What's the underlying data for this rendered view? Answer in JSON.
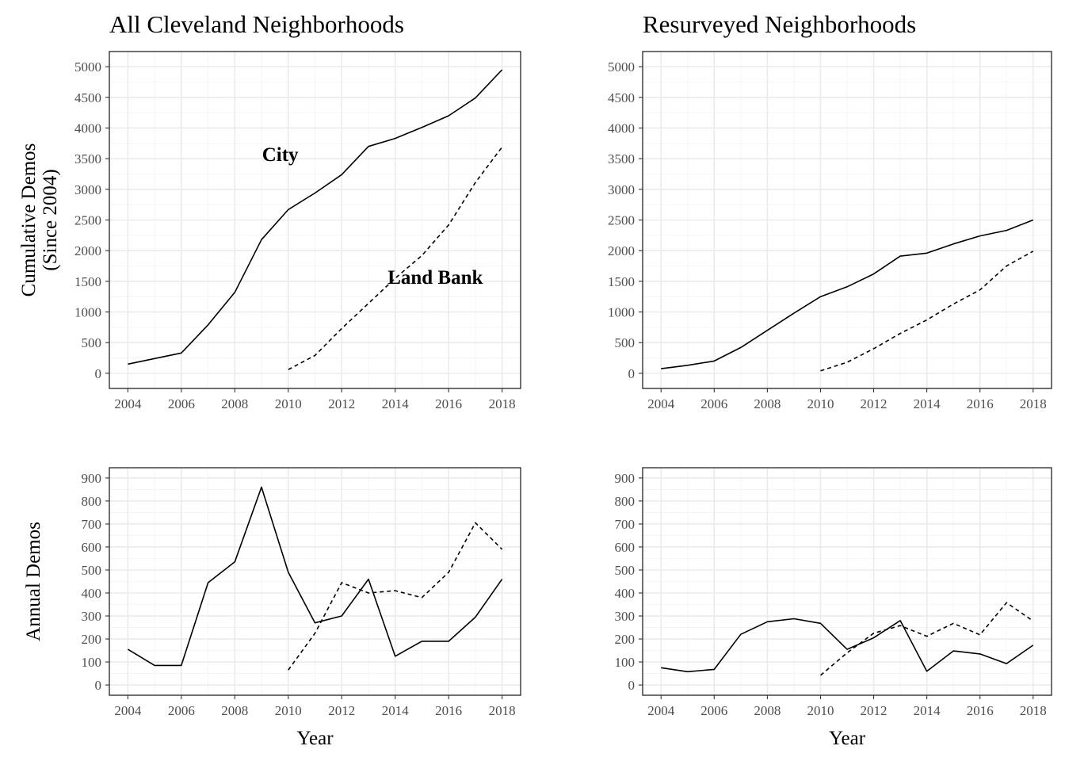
{
  "chart_data": [
    {
      "type": "line",
      "panel": "top-left",
      "title": "All Cleveland Neighborhoods",
      "ylabel": [
        "Cumulative Demos",
        "(Since 2004)"
      ],
      "xlabel": "",
      "xlim": [
        2004,
        2018
      ],
      "ylim": [
        0,
        5000
      ],
      "xticks": [
        2004,
        2006,
        2008,
        2010,
        2012,
        2014,
        2016,
        2018
      ],
      "yticks": [
        0,
        500,
        1000,
        1500,
        2000,
        2500,
        3000,
        3500,
        4000,
        4500,
        5000
      ],
      "grid": true,
      "annotations": [
        {
          "text": "City",
          "x": 2009.7,
          "y": 3460
        },
        {
          "text": "Land Bank",
          "x": 2015.5,
          "y": 1460
        }
      ],
      "series": [
        {
          "style": "solid",
          "x": [
            2004,
            2005,
            2006,
            2007,
            2008,
            2009,
            2010,
            2011,
            2012,
            2013,
            2014,
            2015,
            2016,
            2017,
            2018
          ],
          "values": [
            150,
            240,
            330,
            790,
            1320,
            2180,
            2670,
            2940,
            3240,
            3700,
            3830,
            4010,
            4200,
            4490,
            4950
          ]
        },
        {
          "style": "dashed",
          "x": [
            2010,
            2011,
            2012,
            2013,
            2014,
            2015,
            2016,
            2017,
            2018
          ],
          "values": [
            60,
            290,
            730,
            1140,
            1550,
            1920,
            2420,
            3110,
            3690
          ]
        }
      ]
    },
    {
      "type": "line",
      "panel": "top-right",
      "title": "Resurveyed Neighborhoods",
      "ylabel": [],
      "xlabel": "",
      "xlim": [
        2004,
        2018
      ],
      "ylim": [
        0,
        5000
      ],
      "xticks": [
        2004,
        2006,
        2008,
        2010,
        2012,
        2014,
        2016,
        2018
      ],
      "yticks": [
        0,
        500,
        1000,
        1500,
        2000,
        2500,
        3000,
        3500,
        4000,
        4500,
        5000
      ],
      "grid": true,
      "annotations": [],
      "series": [
        {
          "style": "solid",
          "x": [
            2004,
            2005,
            2006,
            2007,
            2008,
            2009,
            2010,
            2011,
            2012,
            2013,
            2014,
            2015,
            2016,
            2017,
            2018
          ],
          "values": [
            75,
            130,
            200,
            420,
            700,
            980,
            1250,
            1410,
            1620,
            1910,
            1960,
            2110,
            2240,
            2330,
            2500
          ]
        },
        {
          "style": "dashed",
          "x": [
            2010,
            2011,
            2012,
            2013,
            2014,
            2015,
            2016,
            2017,
            2018
          ],
          "values": [
            40,
            180,
            400,
            650,
            870,
            1130,
            1360,
            1750,
            1990
          ]
        }
      ]
    },
    {
      "type": "line",
      "panel": "bottom-left",
      "title": "",
      "ylabel": [
        "Annual Demos"
      ],
      "xlabel": "Year",
      "xlim": [
        2004,
        2018
      ],
      "ylim": [
        0,
        900
      ],
      "xticks": [
        2004,
        2006,
        2008,
        2010,
        2012,
        2014,
        2016,
        2018
      ],
      "yticks": [
        0,
        100,
        200,
        300,
        400,
        500,
        600,
        700,
        800,
        900
      ],
      "grid": true,
      "annotations": [],
      "series": [
        {
          "style": "solid",
          "x": [
            2004,
            2005,
            2006,
            2007,
            2008,
            2009,
            2010,
            2011,
            2012,
            2013,
            2014,
            2015,
            2016,
            2017,
            2018
          ],
          "values": [
            155,
            85,
            85,
            445,
            535,
            860,
            490,
            270,
            300,
            460,
            125,
            190,
            190,
            295,
            460
          ]
        },
        {
          "style": "dashed",
          "x": [
            2010,
            2011,
            2012,
            2013,
            2014,
            2015,
            2016,
            2017,
            2018
          ],
          "values": [
            65,
            225,
            445,
            400,
            410,
            380,
            490,
            705,
            590
          ]
        }
      ]
    },
    {
      "type": "line",
      "panel": "bottom-right",
      "title": "",
      "ylabel": [],
      "xlabel": "Year",
      "xlim": [
        2004,
        2018
      ],
      "ylim": [
        0,
        900
      ],
      "xticks": [
        2004,
        2006,
        2008,
        2010,
        2012,
        2014,
        2016,
        2018
      ],
      "yticks": [
        0,
        100,
        200,
        300,
        400,
        500,
        600,
        700,
        800,
        900
      ],
      "grid": true,
      "annotations": [],
      "series": [
        {
          "style": "solid",
          "x": [
            2004,
            2005,
            2006,
            2007,
            2008,
            2009,
            2010,
            2011,
            2012,
            2013,
            2014,
            2015,
            2016,
            2017,
            2018
          ],
          "values": [
            75,
            58,
            68,
            220,
            275,
            288,
            268,
            155,
            205,
            280,
            60,
            148,
            135,
            93,
            173
          ]
        },
        {
          "style": "dashed",
          "x": [
            2010,
            2011,
            2012,
            2013,
            2014,
            2015,
            2016,
            2017,
            2018
          ],
          "values": [
            42,
            140,
            225,
            258,
            212,
            268,
            218,
            358,
            278
          ]
        }
      ]
    }
  ]
}
